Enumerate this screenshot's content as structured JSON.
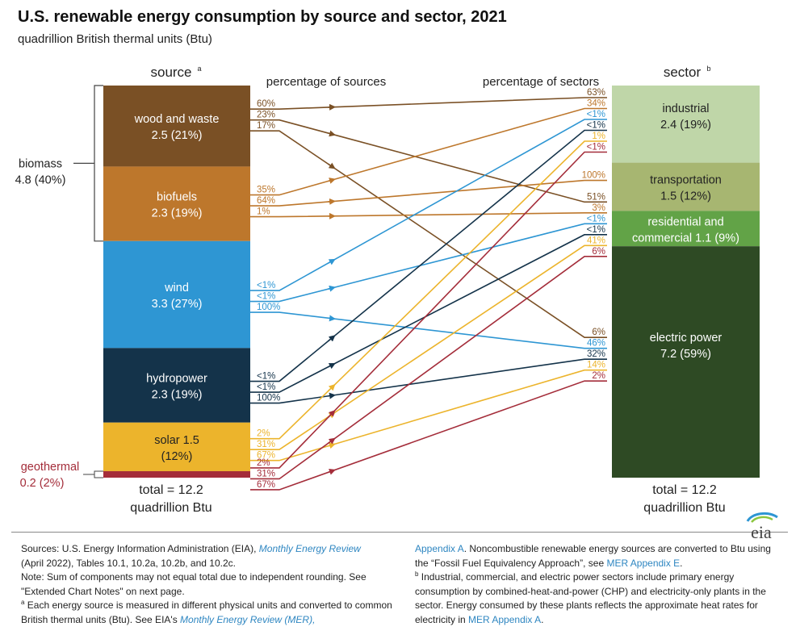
{
  "title": "U.S. renewable energy consumption by source and sector, 2021",
  "subtitle": "quadrillion British thermal units (Btu)",
  "logo": "eia",
  "colors": {
    "wood": "#7a5025",
    "biofuels": "#bd772c",
    "wind": "#2e96d3",
    "hydro": "#14334a",
    "solar": "#ecb42c",
    "geothermal": "#a42d3a",
    "industrial": "#bfd6a8",
    "transportation": "#a7b671",
    "residential": "#62a347",
    "electric": "#2e4a24"
  },
  "chart_data": {
    "type": "sankey",
    "title": "U.S. renewable energy consumption by source and sector, 2021",
    "units": "quadrillion British thermal units (Btu)",
    "source_header": "source",
    "source_header_sup": "a",
    "sector_header": "sector",
    "sector_header_sup": "b",
    "source_pct_header": "percentage of sources",
    "sector_pct_header": "percentage of sectors",
    "sources": [
      {
        "id": "wood",
        "line1": "wood and waste",
        "line2": "2.5 (21%)",
        "value": 2.5,
        "share": "21%"
      },
      {
        "id": "biofuels",
        "line1": "biofuels",
        "line2": "2.3 (19%)",
        "value": 2.3,
        "share": "19%"
      },
      {
        "id": "wind",
        "line1": "wind",
        "line2": "3.3 (27%)",
        "value": 3.3,
        "share": "27%"
      },
      {
        "id": "hydro",
        "line1": "hydropower",
        "line2": "2.3 (19%)",
        "value": 2.3,
        "share": "19%"
      },
      {
        "id": "solar",
        "line1": "solar 1.5",
        "line2": "(12%)",
        "value": 1.5,
        "share": "12%"
      },
      {
        "id": "geothermal",
        "line1": "",
        "line2": "",
        "value": 0.2,
        "share": "2%"
      }
    ],
    "biomass": {
      "label": "biomass",
      "value": "4.8 (40%)"
    },
    "geothermal_label": {
      "label": "geothermal",
      "value": "0.2 (2%)"
    },
    "sectors": [
      {
        "id": "industrial",
        "line1": "industrial",
        "line2": "2.4 (19%)",
        "value": 2.4,
        "share": "19%"
      },
      {
        "id": "transportation",
        "line1": "transportation",
        "line2": "1.5  (12%)",
        "value": 1.5,
        "share": "12%"
      },
      {
        "id": "residential",
        "line1": "residential and",
        "line2": "commercial 1.1 (9%)",
        "value": 1.1,
        "share": "9%"
      },
      {
        "id": "electric",
        "line1": "electric power",
        "line2": "7.2  (59%)",
        "value": 7.2,
        "share": "59%"
      }
    ],
    "flows": [
      {
        "source": "wood",
        "sector": "industrial",
        "source_pct": "60%",
        "sector_pct": "63%"
      },
      {
        "source": "wood",
        "sector": "residential",
        "source_pct": "23%",
        "sector_pct": "51%"
      },
      {
        "source": "wood",
        "sector": "electric",
        "source_pct": "17%",
        "sector_pct": "6%"
      },
      {
        "source": "biofuels",
        "sector": "industrial",
        "source_pct": "35%",
        "sector_pct": "34%"
      },
      {
        "source": "biofuels",
        "sector": "transportation",
        "source_pct": "64%",
        "sector_pct": "100%"
      },
      {
        "source": "biofuels",
        "sector": "residential",
        "source_pct": "1%",
        "sector_pct": "3%"
      },
      {
        "source": "wind",
        "sector": "industrial",
        "source_pct": "<1%",
        "sector_pct": "<1%"
      },
      {
        "source": "wind",
        "sector": "residential",
        "source_pct": "<1%",
        "sector_pct": "<1%"
      },
      {
        "source": "wind",
        "sector": "electric",
        "source_pct": "100%",
        "sector_pct": "46%"
      },
      {
        "source": "hydro",
        "sector": "industrial",
        "source_pct": "<1%",
        "sector_pct": "<1%"
      },
      {
        "source": "hydro",
        "sector": "residential",
        "source_pct": "<1%",
        "sector_pct": "<1%"
      },
      {
        "source": "hydro",
        "sector": "electric",
        "source_pct": "100%",
        "sector_pct": "32%"
      },
      {
        "source": "solar",
        "sector": "industrial",
        "source_pct": "2%",
        "sector_pct": "1%"
      },
      {
        "source": "solar",
        "sector": "residential",
        "source_pct": "31%",
        "sector_pct": "41%"
      },
      {
        "source": "solar",
        "sector": "electric",
        "source_pct": "67%",
        "sector_pct": "14%"
      },
      {
        "source": "geothermal",
        "sector": "industrial",
        "source_pct": "2%",
        "sector_pct": "<1%"
      },
      {
        "source": "geothermal",
        "sector": "residential",
        "source_pct": "31%",
        "sector_pct": "6%"
      },
      {
        "source": "geothermal",
        "sector": "electric",
        "source_pct": "67%",
        "sector_pct": "2%"
      }
    ],
    "source_total": {
      "line1": "total = 12.2",
      "line2": "quadrillion Btu"
    },
    "sector_total": {
      "line1": "total = 12.2",
      "line2": "quadrillion Btu"
    }
  },
  "notes": {
    "col1": {
      "sources_prefix": "Sources: U.S. Energy Information Administration (EIA), ",
      "mer_link": "Monthly Energy Review",
      "sources_suffix": "(April 2022), Tables 10.1, 10.2a, 10.2b, and 10.2c.",
      "note": "Note: Sum of components may not equal total due to independent rounding. See \"Extended Chart Notes\" on next page.",
      "fn_a_mark": "a",
      "fn_a_text": " Each energy source is measured in different physical units and converted to common British thermal units (Btu). See EIA's ",
      "fn_a_link": "Monthly Energy Review (MER),"
    },
    "col2": {
      "appendix_a_link": "Appendix A",
      "text1": ". Noncombustible renewable energy sources are converted to Btu using the “Fossil Fuel Equivalency Approach”, see ",
      "appendix_e_link": "MER Appendix E",
      "text2": ".",
      "fn_b_mark": "b",
      "fn_b_text": " Industrial, commercial, and electric power sectors include primary energy consumption by combined-heat-and-power (CHP) and electricity-only plants in the sector. Energy consumed by these plants reflects the approximate heat rates for electricity in ",
      "mer_appendix_a_link": "MER Appendix A",
      "text3": "."
    }
  }
}
